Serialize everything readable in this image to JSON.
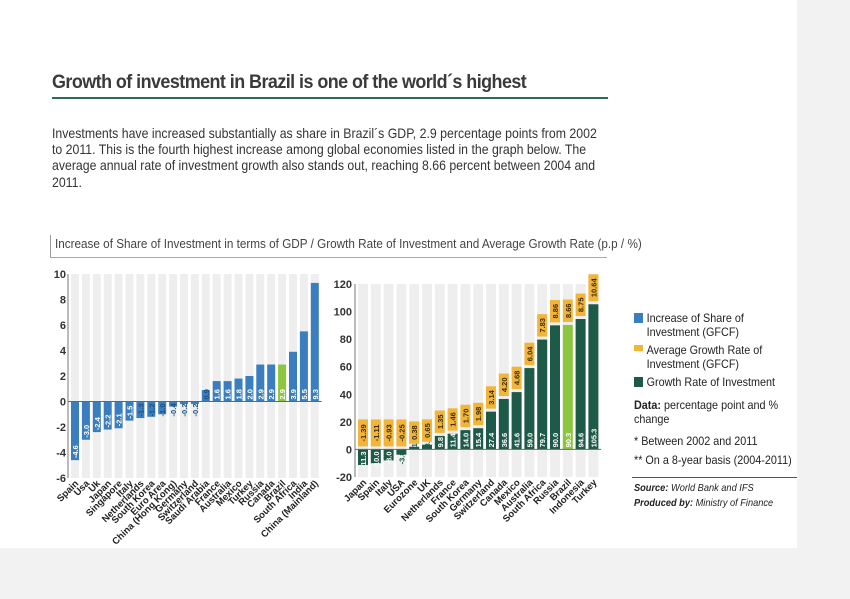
{
  "title": "Growth of investment in Brazil is one of the world´s highest",
  "intro": "Investments have increased substantially as share in Brazil´s GDP, 2.9 percentage points from 2002 to 2011. This is the fourth highest increase among global economies listed in the graph below. The average annual rate of investment growth also stands out, reaching 8.66 percent between 2004 and 2011.",
  "chart_title": "Increase of Share of Investment in terms of GDP / Growth Rate of Investment and Average Growth Rate (p.p / %)",
  "legend": {
    "share": "Increase of Share of Investment (GFCF)",
    "avg": "Average Growth Rate of Investment (GFCF)",
    "growth": "Growth Rate of Investment"
  },
  "notes": {
    "data_label": "Data:",
    "data_text": "percentage point and % change",
    "note1": "* Between 2002 and 2011",
    "note2": "** On a 8-year basis (2004-2011)"
  },
  "source": {
    "source_label": "Source:",
    "source_text": "World Bank and IFS",
    "produced_label": "Produced by:",
    "produced_text": "Ministry of Finance"
  },
  "colors": {
    "blue": "#3a7ebf",
    "green_dark": "#1d5a47",
    "green_light": "#8cc63f",
    "orange": "#f2b53a",
    "bg_bar": "#eeeeee",
    "rule": "#2e6b5b"
  },
  "chart_data": [
    {
      "type": "bar",
      "series": [
        {
          "name": "Increase of Share of Investment (GFCF)",
          "highlight": "Brazil"
        }
      ],
      "categories": [
        "Spain",
        "Usa",
        "Uk",
        "Japan",
        "Singapore",
        "Italy",
        "Netherlands",
        "South Korea",
        "Euro Area",
        "China (Hong Kong)",
        "Germany",
        "Switzerland",
        "Saudi Arabia",
        "France",
        "Australia",
        "Mexico",
        "Turkey",
        "Russia",
        "Canada",
        "Brazil",
        "South Africa",
        "India",
        "China (Mainland)"
      ],
      "values": [
        -4.6,
        -3.0,
        -2.4,
        -2.2,
        -2.1,
        -1.5,
        -1.3,
        -1.2,
        -1.0,
        -0.4,
        -0.2,
        -0.2,
        0.9,
        1.6,
        1.6,
        1.8,
        2.0,
        2.9,
        2.9,
        2.9,
        3.9,
        5.5,
        9.3
      ],
      "labels": [
        "-4.6",
        "-3.0",
        "-2.4",
        "-2.2",
        "-2.1",
        "-1.5",
        "-1.3",
        "-1.2",
        "-1.0",
        "-0.4",
        "-0.2",
        "-0.2",
        "0.9",
        "1.6",
        "1.6",
        "1.8",
        "2.0",
        "2.9",
        "2.9",
        "2.9",
        "3.9",
        "5.5",
        "9.3"
      ],
      "ylim": [
        -6,
        10
      ],
      "yticks": [
        "-6",
        "-4",
        "-2",
        "0",
        "2",
        "4",
        "6",
        "8",
        "10"
      ]
    },
    {
      "type": "bar",
      "series": [
        {
          "name": "Growth Rate of Investment",
          "highlight": "Brazil"
        },
        {
          "name": "Average Growth Rate of Investment (GFCF)"
        }
      ],
      "categories": [
        "Japan",
        "Spain",
        "Italy",
        "USA",
        "Eurozone",
        "UK",
        "Netherlands",
        "France",
        "South Korea",
        "Germany",
        "Switzerland",
        "Canada",
        "Mexico",
        "Australia",
        "South Africa",
        "Russia",
        "Brazil",
        "Indonesia",
        "Turkey"
      ],
      "values": [
        -11.3,
        -10.0,
        -8.0,
        -3.8,
        1.9,
        3.4,
        9.8,
        11.4,
        14.0,
        15.4,
        27.4,
        36.6,
        41.6,
        59.0,
        79.7,
        90.0,
        90.3,
        94.6,
        105.3
      ],
      "growth_labels": [
        "-11.3",
        "-10.0",
        "-8.0",
        "-3.8",
        "1.9",
        "3.4",
        "9.8",
        "11.4",
        "14.0",
        "15.4",
        "27.4",
        "36.6",
        "41.6",
        "59.0",
        "79.7",
        "90.0",
        "90.3",
        "94.6",
        "105.3"
      ],
      "avg_labels": [
        "-1.39",
        "-1.11",
        "-0.93",
        "-0.25",
        "0.38",
        "0.65",
        "1.35",
        "1.46",
        "1.70",
        "1.98",
        "3.14",
        "4.20",
        "4.68",
        "6.04",
        "7.83",
        "8.86",
        "8.66",
        "8.75",
        "10.64"
      ],
      "ylim": [
        -20,
        120
      ],
      "yticks": [
        "-20",
        "0",
        "20",
        "40",
        "60",
        "80",
        "100",
        "120"
      ]
    }
  ]
}
